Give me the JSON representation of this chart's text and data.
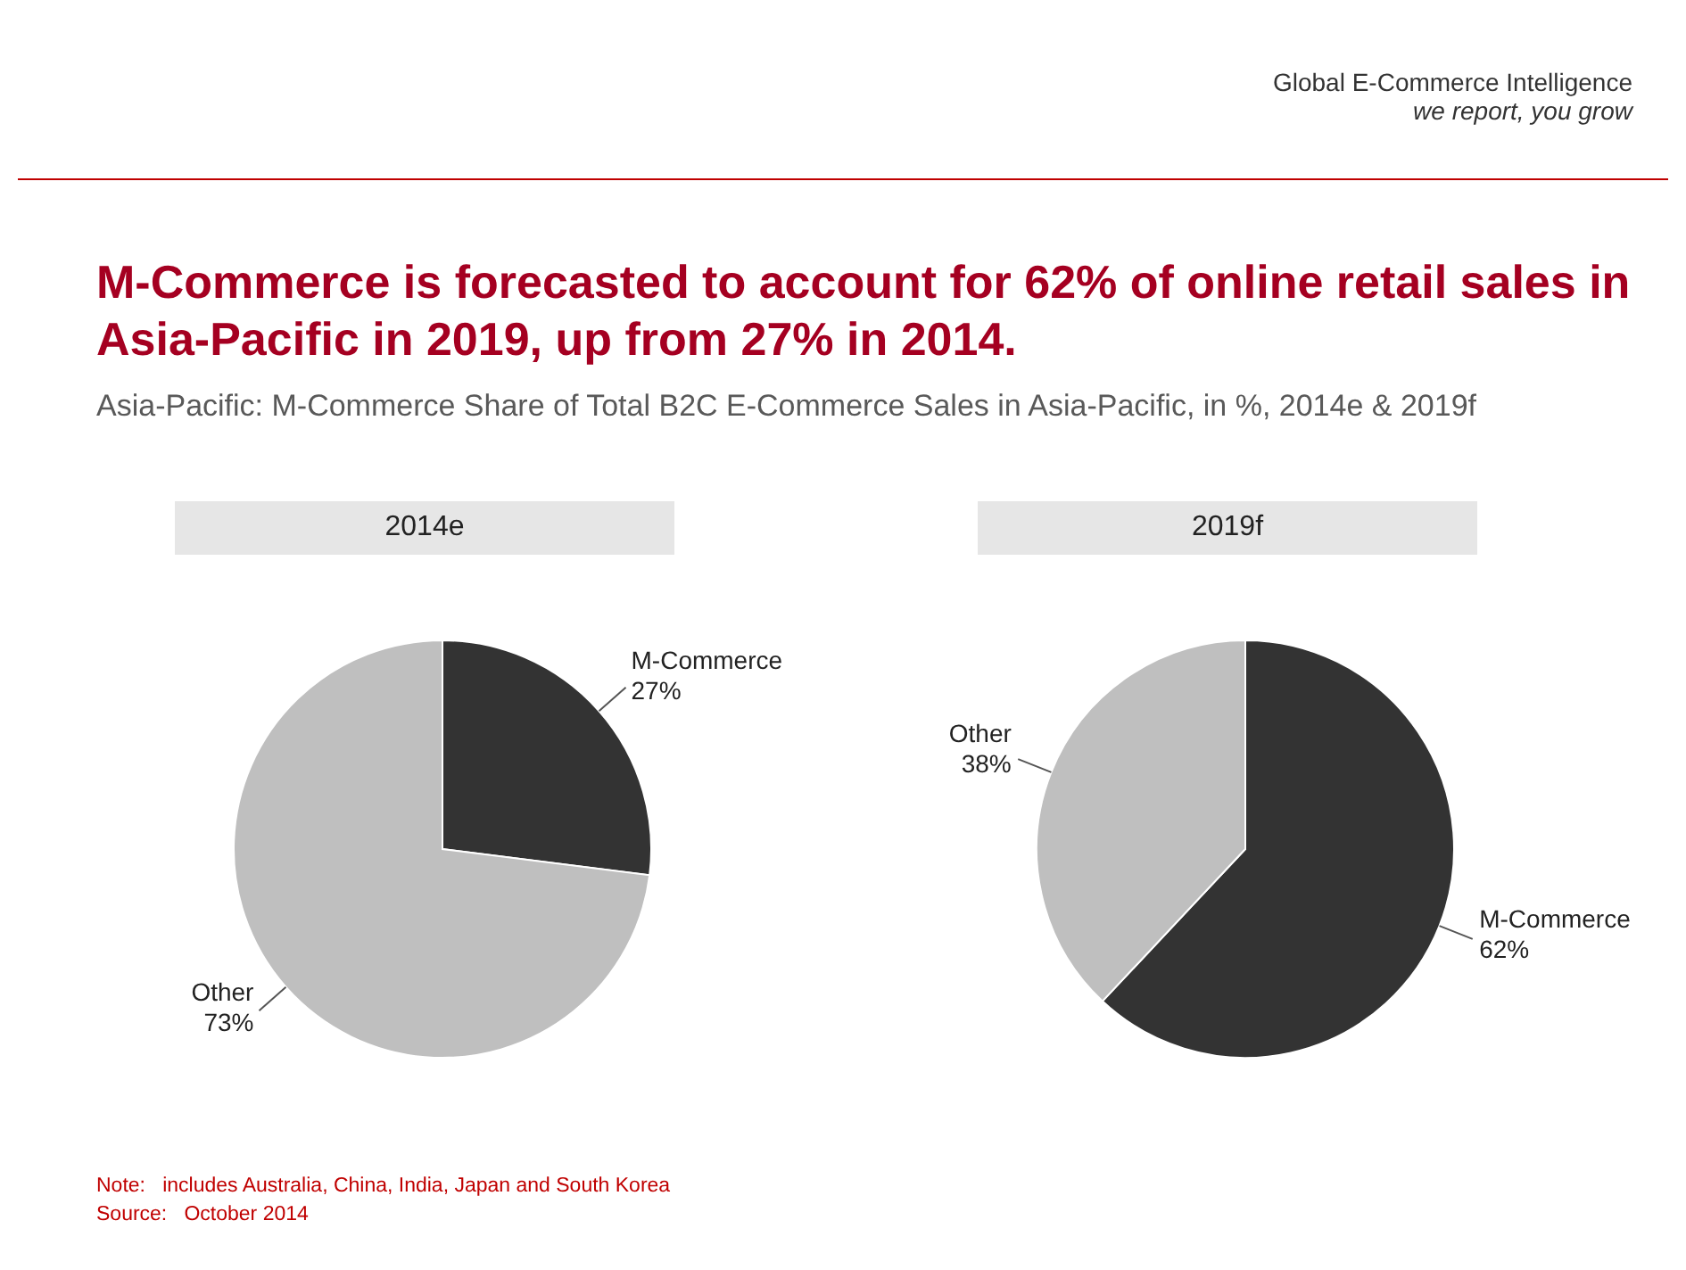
{
  "chart_data": [
    {
      "type": "other",
      "title": "M-Commerce is forecasted to account for 62% of online retail sales in Asia-Pacific in 2019, up from 27% in 2014.",
      "subtitle": "Asia-Pacific: M-Commerce Share of Total B2C E-Commerce Sales in Asia-Pacific, in %, 2014e & 2019f",
      "annotations": [
        "Global E-Commerce Intelligence",
        "we report, you grow",
        "Note:   includes Australia, China, India, Japan and South Korea",
        "Source:   October 2014"
      ]
    },
    {
      "type": "pie",
      "title": "2014e",
      "categories": [
        "M-Commerce",
        "Other"
      ],
      "values": [
        27,
        73
      ],
      "colors": [
        "#333333",
        "#bfbfbf"
      ],
      "value_labels": [
        "27%",
        "73%"
      ]
    },
    {
      "type": "pie",
      "title": "2019f",
      "categories": [
        "M-Commerce",
        "Other"
      ],
      "values": [
        62,
        38
      ],
      "colors": [
        "#333333",
        "#bfbfbf"
      ],
      "value_labels": [
        "62%",
        "38%"
      ]
    }
  ]
}
